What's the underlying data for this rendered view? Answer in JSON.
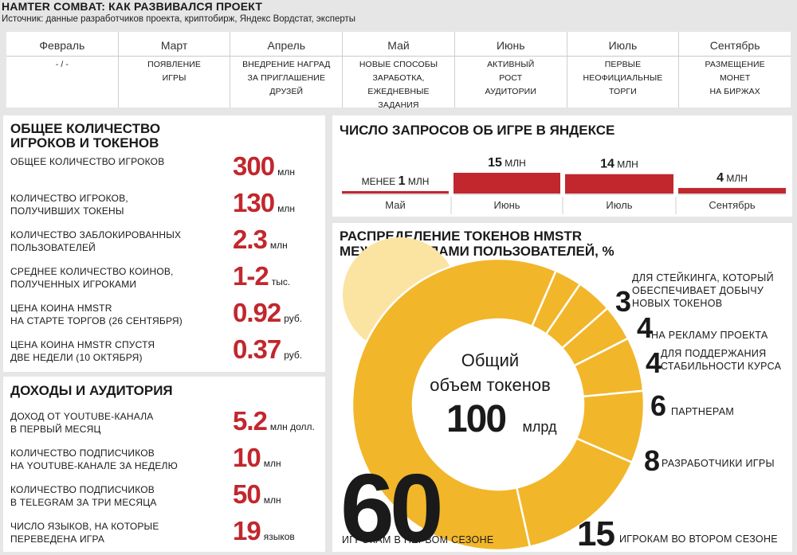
{
  "header": {
    "title": "HAMTER COMBAT: КАК РАЗВИВАЛСЯ ПРОЕКТ",
    "subtitle": "Источник: данные разработчиков проекта, криптобирж, Яндекс Вордстат, эксперты"
  },
  "timeline": [
    {
      "month": "Февраль",
      "desc": "- / -"
    },
    {
      "month": "Март",
      "desc": "ПОЯВЛЕНИЕ\nИГРЫ"
    },
    {
      "month": "Апрель",
      "desc": "ВНЕДРЕНИЕ НАГРАД\nЗА ПРИГЛАШЕНИЕ\nДРУЗЕЙ"
    },
    {
      "month": "Май",
      "desc": "НОВЫЕ СПОСОБЫ ЗАРАБОТКА,\nЕЖЕДНЕВНЫЕ\nЗАДАНИЯ"
    },
    {
      "month": "Июнь",
      "desc": "АКТИВНЫЙ\nРОСТ\nАУДИТОРИИ"
    },
    {
      "month": "Июль",
      "desc": "ПЕРВЫЕ\nНЕОФИЦИАЛЬНЫЕ\nТОРГИ"
    },
    {
      "month": "Сентябрь",
      "desc": "РАЗМЕЩЕНИЕ\nМОНЕТ\nНА БИРЖАХ"
    }
  ],
  "players": {
    "title": "ОБЩЕЕ КОЛИЧЕСТВО\nИГРОКОВ И ТОКЕНОВ",
    "rows": [
      {
        "label": "ОБЩЕЕ КОЛИЧЕСТВО ИГРОКОВ",
        "value": "300",
        "unit": "млн"
      },
      {
        "label": "КОЛИЧЕСТВО ИГРОКОВ,\nПОЛУЧИВШИХ ТОКЕНЫ",
        "value": "130",
        "unit": "млн"
      },
      {
        "label": "КОЛИЧЕСТВО ЗАБЛОКИРОВАННЫХ\nПОЛЬЗОВАТЕЛЕЙ",
        "value": "2.3",
        "unit": "млн"
      },
      {
        "label": "СРЕДНЕЕ КОЛИЧЕСТВО КОИНОВ,\nПОЛУЧЕННЫХ ИГРОКАМИ",
        "value": "1-2",
        "unit": "тыс."
      },
      {
        "label": "ЦЕНА КОИНА HMSTR\nНА СТАРТЕ ТОРГОВ (26 СЕНТЯБРЯ)",
        "value": "0.92",
        "unit": "руб."
      },
      {
        "label": "ЦЕНА КОИНА HMSTR СПУСТЯ\nДВЕ НЕДЕЛИ (10 ОКТЯБРЯ)",
        "value": "0.37",
        "unit": "руб."
      }
    ]
  },
  "income": {
    "title": "ДОХОДЫ И АУДИТОРИЯ",
    "rows": [
      {
        "label": "ДОХОД ОТ YOUTUBE-КАНАЛА\nВ ПЕРВЫЙ МЕСЯЦ",
        "value": "5.2",
        "unit": "млн долл."
      },
      {
        "label": "КОЛИЧЕСТВО ПОДПИСЧИКОВ\nНА YOUTUBE-КАНАЛЕ ЗА НЕДЕЛЮ",
        "value": "10",
        "unit": "млн"
      },
      {
        "label": "КОЛИЧЕСТВО ПОДПИСЧИКОВ\nВ TELEGRAM ЗА ТРИ МЕСЯЦА",
        "value": "50",
        "unit": "млн"
      },
      {
        "label": "ЧИСЛО ЯЗЫКОВ, НА КОТОРЫЕ\nПЕРЕВЕДЕНА ИГРА",
        "value": "19",
        "unit": "языков"
      }
    ]
  },
  "colors": {
    "red": "#c1272d",
    "donut": "#f2b62a",
    "donut_light": "#fbe3a2",
    "separator": "#ffffff"
  },
  "chart_data": [
    {
      "type": "bar",
      "title": "ЧИСЛО ЗАПРОСОВ ОБ ИГРЕ В ЯНДЕКСЕ",
      "categories": [
        "Май",
        "Июнь",
        "Июль",
        "Сентябрь"
      ],
      "values": [
        0.5,
        15,
        14,
        4
      ],
      "value_labels": [
        {
          "prefix": "МЕНЕЕ ",
          "num": "1",
          "unit": " МЛН"
        },
        {
          "prefix": "",
          "num": "15",
          "unit": " МЛН"
        },
        {
          "prefix": "",
          "num": "14",
          "unit": " МЛН"
        },
        {
          "prefix": "",
          "num": "4",
          "unit": " МЛН"
        }
      ],
      "ylim": [
        0,
        15
      ],
      "grid": false
    },
    {
      "type": "pie",
      "title": "РАСПРЕДЕЛЕНИЕ ТОКЕНОВ HMSTR\nМЕЖДУ ГРУППАМИ ПОЛЬЗОВАТЕЛЕЙ, %",
      "center": {
        "line1": "Общий",
        "line2": "объем токенов",
        "value": "100",
        "unit": "млрд"
      },
      "slices": [
        {
          "value": 60,
          "label": "ИГРОКАМ В ПЕРВОМ СЕЗОНЕ"
        },
        {
          "value": 15,
          "label": "ИГРОКАМ ВО ВТОРОМ СЕЗОНЕ"
        },
        {
          "value": 8,
          "label": "РАЗРАБОТЧИКИ ИГРЫ"
        },
        {
          "value": 6,
          "label": "ПАРТНЕРАМ"
        },
        {
          "value": 4,
          "label": "ДЛЯ ПОДДЕРЖАНИЯ\nСТАБИЛЬНОСТИ КУРСА"
        },
        {
          "value": 4,
          "label": "НА РЕКЛАМУ ПРОЕКТА"
        },
        {
          "value": 3,
          "label": "ДЛЯ СТЕЙКИНГА, КОТОРЫЙ\nОБЕСПЕЧИВАЕТ ДОБЫЧУ\nНОВЫХ ТОКЕНОВ"
        }
      ]
    }
  ]
}
